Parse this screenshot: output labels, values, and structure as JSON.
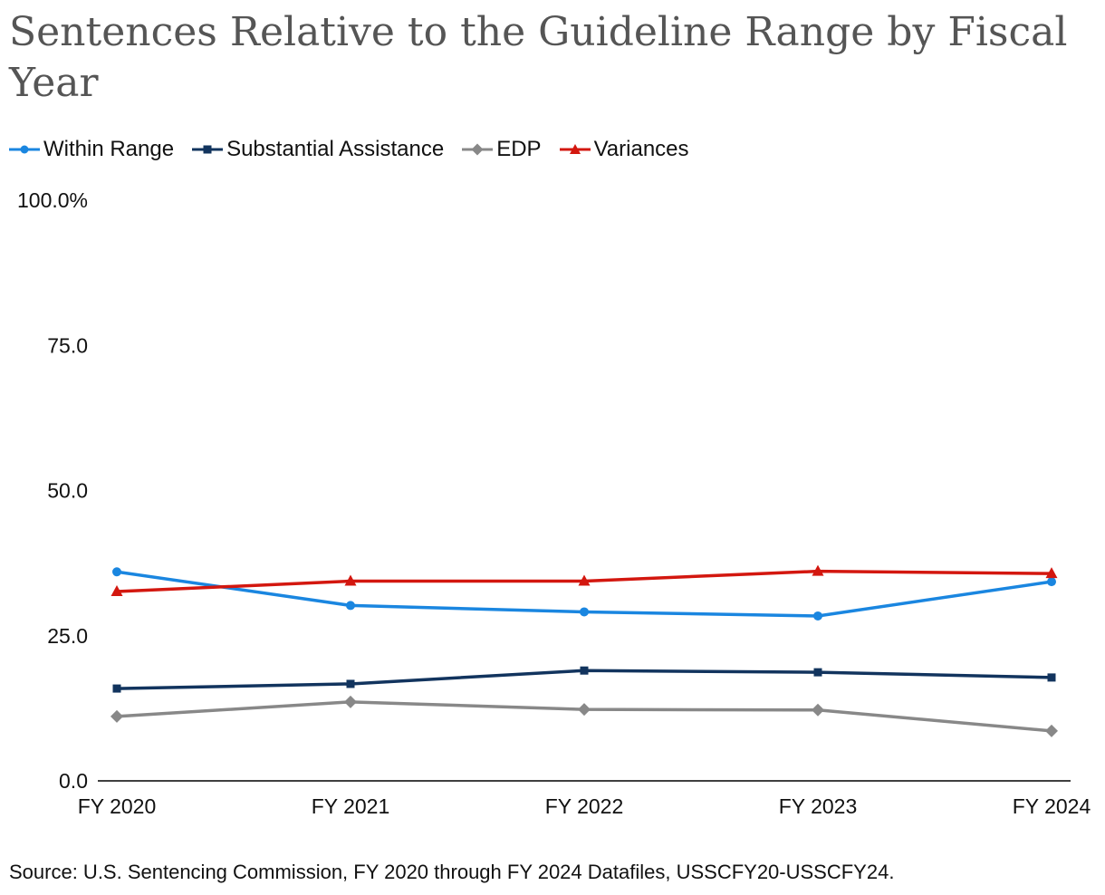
{
  "chart_data": {
    "type": "line",
    "title": "Sentences Relative to the Guideline Range by Fiscal Year",
    "categories": [
      "FY 2020",
      "FY 2021",
      "FY 2022",
      "FY 2023",
      "FY 2024"
    ],
    "ylim": [
      0,
      100
    ],
    "yticks": [
      "0.0",
      "25.0",
      "50.0",
      "75.0",
      "100.0%"
    ],
    "ytick_values": [
      0,
      25,
      50,
      75,
      100
    ],
    "grid": false,
    "legend_position": "top-left",
    "series": [
      {
        "name": "Within Range",
        "color": "#1a86e0",
        "marker": "circle",
        "values": [
          36.0,
          30.2,
          29.1,
          28.4,
          34.3
        ]
      },
      {
        "name": "Substantial Assistance",
        "color": "#12345e",
        "marker": "square",
        "values": [
          15.9,
          16.7,
          19.0,
          18.7,
          17.8
        ]
      },
      {
        "name": "EDP",
        "color": "#888888",
        "marker": "diamond",
        "values": [
          11.1,
          13.6,
          12.3,
          12.2,
          8.6
        ]
      },
      {
        "name": "Variances",
        "color": "#d3170f",
        "marker": "triangle",
        "values": [
          32.6,
          34.4,
          34.4,
          36.1,
          35.7
        ]
      }
    ]
  },
  "source": "Source: U.S. Sentencing Commission, FY 2020 through FY 2024 Datafiles, USSCFY20-USSCFY24."
}
